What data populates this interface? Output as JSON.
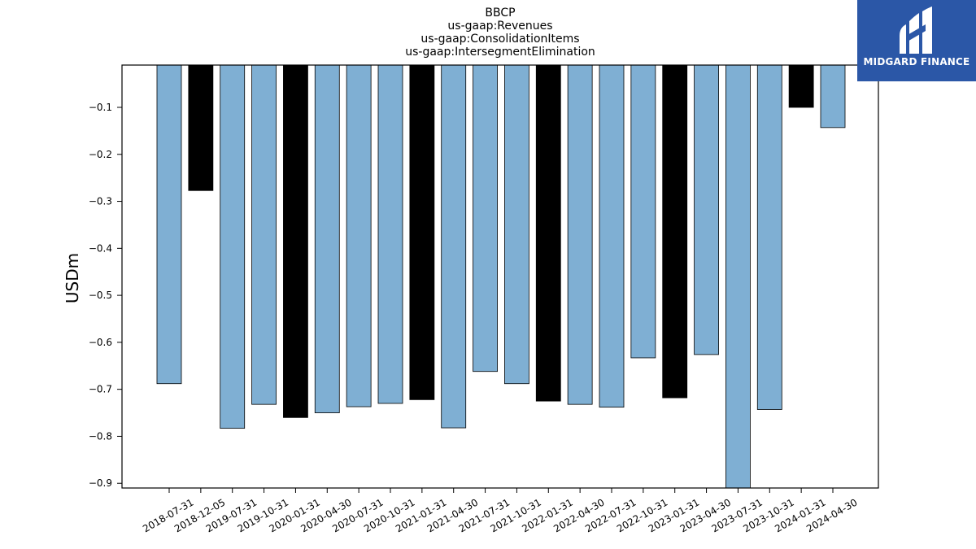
{
  "chart_data": {
    "type": "bar",
    "title_lines": [
      "BBCP",
      "us-gaap:Revenues",
      "us-gaap:ConsolidationItems",
      "us-gaap:IntersegmentElimination"
    ],
    "ylabel": "USDm",
    "xlabel": "",
    "ylim": [
      -0.91,
      -0.01
    ],
    "yticks": [
      -0.1,
      -0.2,
      -0.3,
      -0.4,
      -0.5,
      -0.6,
      -0.7,
      -0.8,
      -0.9
    ],
    "ytick_labels": [
      "−0.1",
      "−0.2",
      "−0.3",
      "−0.4",
      "−0.5",
      "−0.6",
      "−0.7",
      "−0.8",
      "−0.9"
    ],
    "grid": false,
    "categories": [
      "2018-07-31",
      "2018-12-05",
      "2019-07-31",
      "2019-10-31",
      "2020-01-31",
      "2020-04-30",
      "2020-07-31",
      "2020-10-31",
      "2021-01-31",
      "2021-04-30",
      "2021-07-31",
      "2021-10-31",
      "2022-01-31",
      "2022-04-30",
      "2022-07-31",
      "2022-10-31",
      "2023-01-31",
      "2023-04-30",
      "2023-07-31",
      "2023-10-31",
      "2024-01-31",
      "2024-04-30"
    ],
    "values": [
      -0.688,
      -0.277,
      -0.783,
      -0.732,
      -0.76,
      -0.75,
      -0.737,
      -0.73,
      -0.722,
      -0.782,
      -0.662,
      -0.688,
      -0.725,
      -0.732,
      -0.738,
      -0.633,
      -0.718,
      -0.626,
      -0.91,
      -0.743,
      -0.1,
      -0.143
    ],
    "bar_colors": [
      "#7fafd3",
      "#000000",
      "#7fafd3",
      "#7fafd3",
      "#000000",
      "#7fafd3",
      "#7fafd3",
      "#7fafd3",
      "#000000",
      "#7fafd3",
      "#7fafd3",
      "#7fafd3",
      "#000000",
      "#7fafd3",
      "#7fafd3",
      "#7fafd3",
      "#000000",
      "#7fafd3",
      "#7fafd3",
      "#7fafd3",
      "#000000",
      "#7fafd3"
    ]
  },
  "logo": {
    "text": "MIDGARD FINANCE",
    "background_color": "#2b57a7"
  }
}
